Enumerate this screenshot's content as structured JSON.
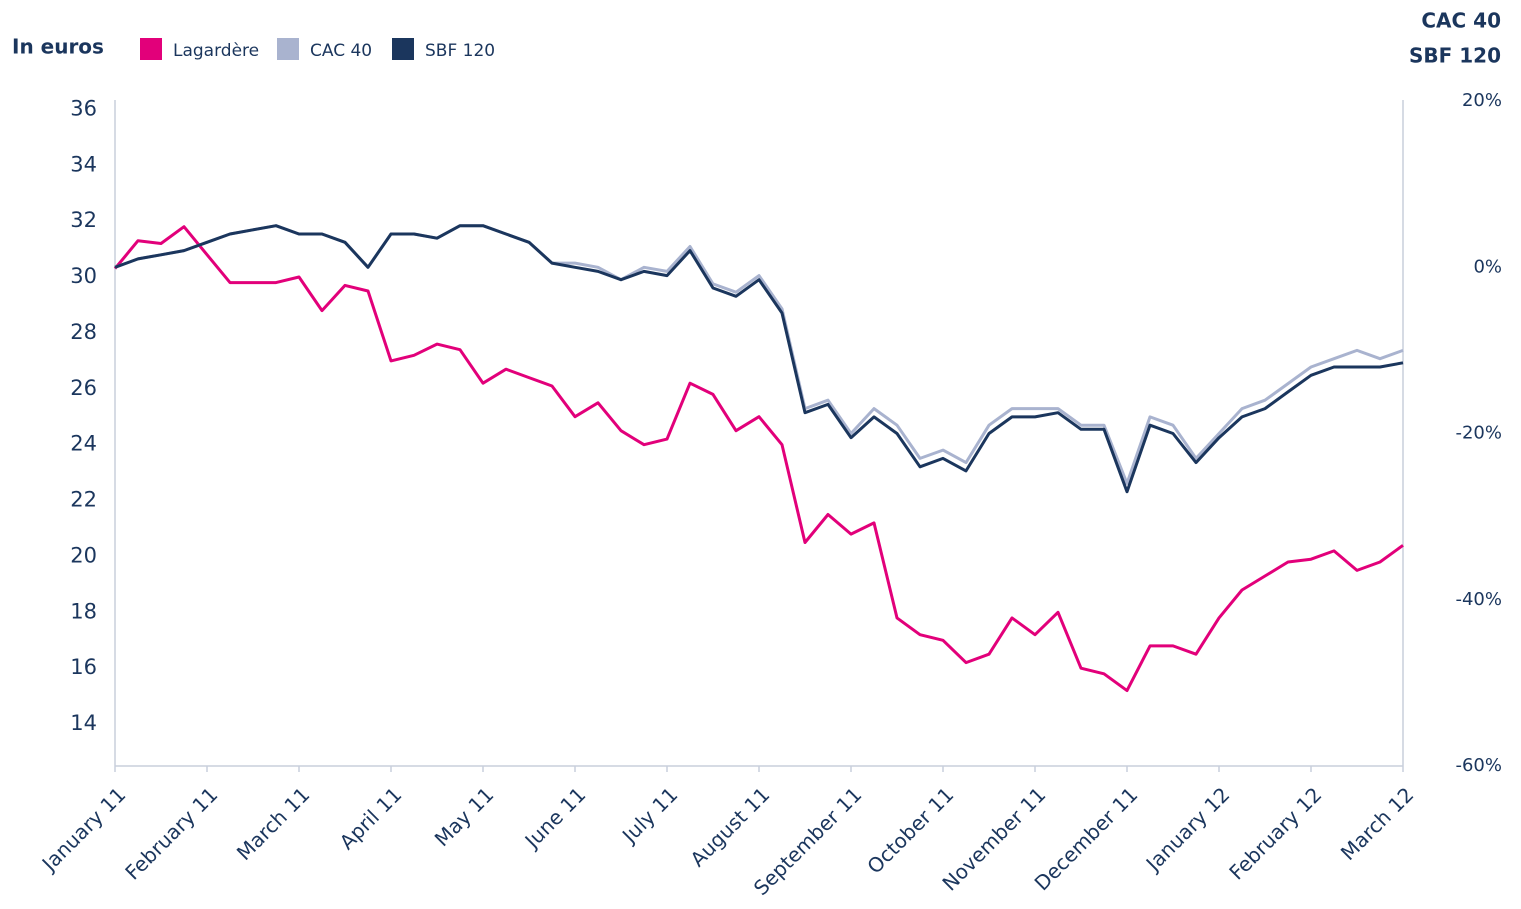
{
  "chart_data": {
    "type": "line",
    "ylabel": "In euros",
    "y2label": [
      "CAC 40",
      "SBF 120"
    ],
    "categories": [
      "January 11",
      null,
      null,
      null,
      "February 11",
      null,
      null,
      null,
      "March 11",
      null,
      null,
      null,
      "April 11",
      null,
      null,
      null,
      "May 11",
      null,
      null,
      null,
      "June 11",
      null,
      null,
      null,
      "July 11",
      null,
      null,
      null,
      "August 11",
      null,
      null,
      null,
      "September 11",
      null,
      null,
      null,
      "October 11",
      null,
      null,
      null,
      "November 11",
      null,
      null,
      null,
      "December 11",
      null,
      null,
      null,
      "January 12",
      null,
      null,
      null,
      "February 12",
      null,
      null,
      null,
      "March 12"
    ],
    "series": [
      {
        "name": "Lagardère",
        "color": "#e2007a",
        "values": [
          30.3,
          31.3,
          31.2,
          31.8,
          30.8,
          29.8,
          29.8,
          29.8,
          30.0,
          28.8,
          29.7,
          29.5,
          27.0,
          27.2,
          27.6,
          27.4,
          26.2,
          26.7,
          26.4,
          26.1,
          25.0,
          25.5,
          24.5,
          24.0,
          24.2,
          26.2,
          25.8,
          24.5,
          25.0,
          24.0,
          20.5,
          21.5,
          20.8,
          21.2,
          17.8,
          17.2,
          17.0,
          16.2,
          16.5,
          17.8,
          17.2,
          18.0,
          16.0,
          15.8,
          15.2,
          16.8,
          16.8,
          16.5,
          17.8,
          18.8,
          19.3,
          19.8,
          19.9,
          20.2,
          19.5,
          19.8,
          20.4
        ]
      },
      {
        "name": "CAC 40",
        "color": "#a9b3cf",
        "axis": "y2",
        "values": [
          0,
          1,
          1.5,
          2,
          3,
          4,
          4.5,
          5,
          4,
          4,
          3,
          0,
          4,
          4,
          3.5,
          5,
          5,
          4,
          3,
          0.5,
          0.5,
          0,
          -1.5,
          0,
          -0.5,
          2.5,
          -2,
          -3,
          -1,
          -5,
          -17,
          -16,
          -20,
          -17,
          -19,
          -23,
          -22,
          -23.5,
          -19,
          -17,
          -17,
          -17,
          -19,
          -19,
          -26,
          -18,
          -19,
          -23,
          -20,
          -17,
          -16,
          -14,
          -12,
          -11,
          -10,
          -11,
          -10
        ]
      },
      {
        "name": "SBF 120",
        "color": "#1b365d",
        "axis": "y2",
        "values": [
          0,
          1,
          1.5,
          2,
          3,
          4,
          4.5,
          5,
          4,
          4,
          3,
          0,
          4,
          4,
          3.5,
          5,
          5,
          4,
          3,
          0.5,
          0,
          -0.5,
          -1.5,
          -0.5,
          -1,
          2,
          -2.5,
          -3.5,
          -1.5,
          -5.5,
          -17.5,
          -16.5,
          -20.5,
          -18,
          -20,
          -24,
          -23,
          -24.5,
          -20,
          -18,
          -18,
          -17.5,
          -19.5,
          -19.5,
          -27,
          -19,
          -20,
          -23.5,
          -20.5,
          -18,
          -17,
          -15,
          -13,
          -12,
          -12,
          -12,
          -11.5
        ]
      }
    ],
    "ylim": [
      12.5,
      36.3
    ],
    "yticks": [
      14,
      16,
      18,
      20,
      22,
      24,
      26,
      28,
      30,
      32,
      34,
      36
    ],
    "y2lim": [
      -60,
      20
    ],
    "y2ticks": [
      {
        "value": -60,
        "label": "-60%"
      },
      {
        "value": -40,
        "label": "-40%"
      },
      {
        "value": -20,
        "label": "-20%"
      },
      {
        "value": 0,
        "label": "0%"
      },
      {
        "value": 20,
        "label": "20%"
      }
    ],
    "legend": "top-left"
  }
}
